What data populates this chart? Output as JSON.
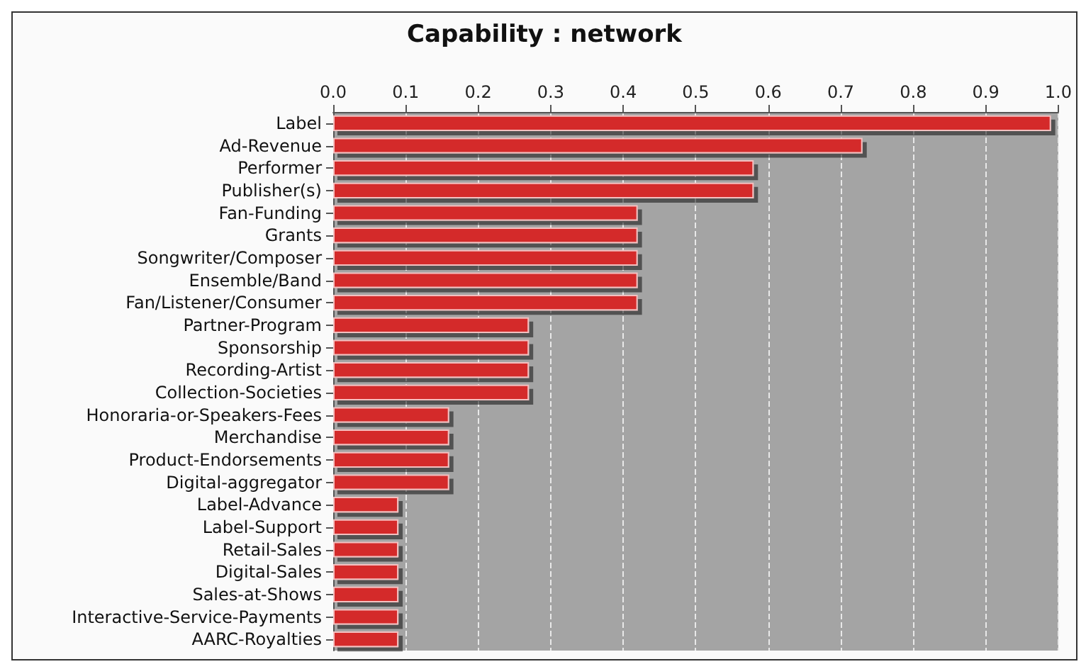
{
  "chart_data": {
    "type": "bar",
    "orientation": "horizontal",
    "title": "Capability : network",
    "categories": [
      "Label",
      "Ad-Revenue",
      "Performer",
      "Publisher(s)",
      "Fan-Funding",
      "Grants",
      "Songwriter/Composer",
      "Ensemble/Band",
      "Fan/Listener/Consumer",
      "Partner-Program",
      "Sponsorship",
      "Recording-Artist",
      "Collection-Societies",
      "Honoraria-or-Speakers-Fees",
      "Merchandise",
      "Product-Endorsements",
      "Digital-aggregator",
      "Label-Advance",
      "Label-Support",
      "Retail-Sales",
      "Digital-Sales",
      "Sales-at-Shows",
      "Interactive-Service-Payments",
      "AARC-Royalties"
    ],
    "values": [
      0.99,
      0.73,
      0.58,
      0.58,
      0.42,
      0.42,
      0.42,
      0.42,
      0.42,
      0.27,
      0.27,
      0.27,
      0.27,
      0.16,
      0.16,
      0.16,
      0.16,
      0.09,
      0.09,
      0.09,
      0.09,
      0.09,
      0.09,
      0.09
    ],
    "color": "#d42a2a",
    "xlim": [
      0,
      1.0
    ],
    "xticks": [
      {
        "value": 0,
        "label": "0.0"
      },
      0.1,
      0.2,
      0.3,
      0.4,
      0.5,
      0.6,
      0.7,
      0.8,
      0.9,
      {
        "value": 1,
        "label": "1.0"
      }
    ],
    "grid": "x"
  }
}
